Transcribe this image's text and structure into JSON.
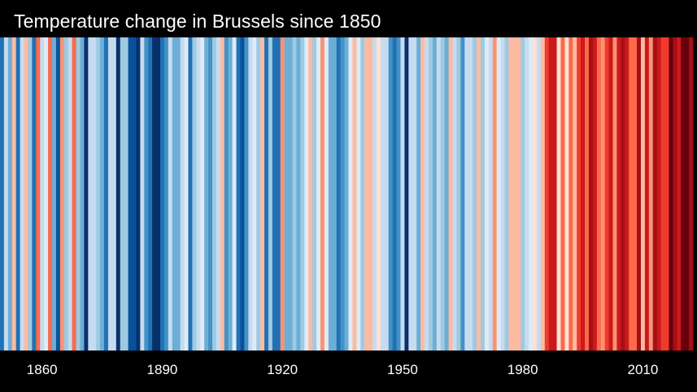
{
  "header": {
    "title": "Temperature change in Brussels since 1850"
  },
  "chart_data": {
    "type": "heatmap",
    "title": "Temperature change in Brussels since 1850",
    "xlabel": "",
    "ylabel": "",
    "x_ticks": [
      1860,
      1890,
      1920,
      1950,
      1980,
      2010
    ],
    "years": [
      1850,
      2022
    ],
    "grid": false,
    "legend": "none",
    "color_scale": [
      "#08306b",
      "#08519c",
      "#2171b5",
      "#4292c6",
      "#6baed6",
      "#9ecae1",
      "#c6dbef",
      "#deebf7",
      "#fee0d2",
      "#fcbba1",
      "#fc9272",
      "#fb6a4a",
      "#ef3b2c",
      "#cb181d",
      "#a50f15",
      "#67000d"
    ],
    "anomaly_range": [
      -2,
      2
    ],
    "anomalies": [
      -1.5,
      -0.5,
      -1.0,
      0.3,
      -1.5,
      -0.4,
      0.3,
      -0.6,
      -1.3,
      0.9,
      -0.5,
      -0.2,
      0.8,
      -0.9,
      -1.6,
      0.6,
      -0.6,
      -0.5,
      0.8,
      -0.6,
      -1.0,
      -1.8,
      -0.5,
      -0.3,
      -0.6,
      -1.0,
      -1.3,
      -0.3,
      -0.4,
      -1.8,
      -0.7,
      -0.6,
      -1.6,
      -1.7,
      -1.8,
      -0.5,
      -1.2,
      -1.4,
      -1.9,
      -1.9,
      -1.3,
      -1.2,
      -0.5,
      -0.9,
      -0.9,
      -0.4,
      -0.2,
      -1.3,
      -0.6,
      -0.3,
      -0.2,
      -0.9,
      -1.2,
      -0.7,
      -0.4,
      0.4,
      -1.1,
      -1.0,
      -0.1,
      -1.3,
      -1.6,
      -1.2,
      -0.4,
      -0.2,
      -0.6,
      0.4,
      -1.4,
      -0.6,
      -1.3,
      -1.5,
      0.6,
      -1.0,
      -0.8,
      -0.6,
      -0.9,
      -0.6,
      -0.2,
      0.3,
      -0.7,
      -0.1,
      0.5,
      -0.1,
      -0.9,
      -0.9,
      -1.3,
      -1.2,
      -0.8,
      -0.2,
      0.4,
      -0.2,
      -0.6,
      0.3,
      0.4,
      -0.4,
      0.2,
      -0.4,
      -0.3,
      -1.1,
      -1.4,
      -1.1,
      -0.5,
      -1.8,
      -0.5,
      -0.5,
      -0.9,
      0.4,
      -0.3,
      -0.6,
      -1.0,
      -0.5,
      -0.7,
      -0.8,
      0.4,
      -0.5,
      -0.7,
      -1.1,
      -0.5,
      -0.4,
      -0.7,
      0.3,
      -0.7,
      -0.1,
      -0.3,
      0.5,
      -0.1,
      -0.4,
      -0.7,
      0.3,
      0.3,
      0.3,
      -0.7,
      -0.5,
      -0.1,
      0.2,
      -0.3,
      0.4,
      1.2,
      1.4,
      1.3,
      0.2,
      0.9,
      0.2,
      0.8,
      0.4,
      1.2,
      1.4,
      0.8,
      1.5,
      1.4,
      0.9,
      0.5,
      1.2,
      1.3,
      0.6,
      1.3,
      1.6,
      1.3,
      0.9,
      0.9,
      1.5,
      0.3,
      1.3,
      0.5,
      1.6,
      1.3,
      1.1,
      1.2,
      1.8,
      1.6,
      1.4,
      1.9,
      2.0,
      1.5
    ]
  }
}
